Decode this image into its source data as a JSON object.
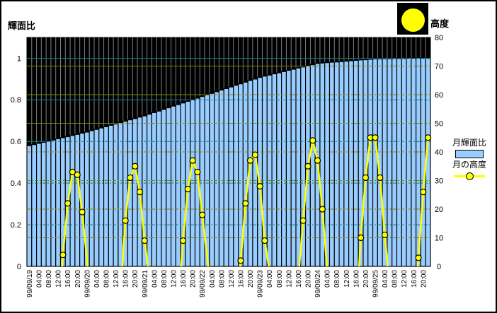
{
  "window": {
    "background": "#FFFFFF",
    "border_color": "#000000"
  },
  "titles": {
    "left_axis": "輝面比",
    "right_axis": "高度"
  },
  "moon_icon": {
    "name": "full-moon-icon",
    "shape": "circle",
    "fill": "#FFFF00",
    "box_background": "#000000"
  },
  "legend": {
    "position": "right",
    "items": [
      {
        "label": "月輝面比",
        "swatch": "bar",
        "color": "#99CCFF",
        "border": "#000000"
      },
      {
        "label": "月の高度",
        "swatch": "line-marker",
        "color": "#FFFF00",
        "marker_stroke": "#000000"
      }
    ]
  },
  "chart_data": {
    "type": "combo",
    "title": "",
    "plot": {
      "background": "#000000",
      "vertical_gridline_color": "#808080",
      "border": "#000000"
    },
    "x_axis": {
      "start": "99/09/19 00:00",
      "end": "99/09/25 22:00",
      "step_hours": 2,
      "label_every_hours": 4,
      "labels": [
        "99/09/19",
        "04:00",
        "08:00",
        "12:00",
        "16:00",
        "20:00",
        "99/09/20",
        "04:00",
        "08:00",
        "12:00",
        "16:00",
        "20:00",
        "99/09/21",
        "04:00",
        "08:00",
        "12:00",
        "16:00",
        "20:00",
        "99/09/22",
        "04:00",
        "08:00",
        "12:00",
        "16:00",
        "20:00",
        "99/09/23",
        "04:00",
        "08:00",
        "12:00",
        "16:00",
        "20:00",
        "99/09/24",
        "04:00",
        "08:00",
        "12:00",
        "16:00",
        "20:00",
        "99/09/25",
        "04:00",
        "08:00",
        "12:00",
        "16:00",
        "20:00"
      ]
    },
    "left_axis": {
      "title": "輝面比",
      "min": 0,
      "max": 1.1,
      "major": 0.2,
      "ticks": [
        "1",
        "0.8",
        "0.6",
        "0.4",
        "0.2",
        "0"
      ],
      "tick_values": [
        1,
        0.8,
        0.6,
        0.4,
        0.2,
        0
      ],
      "gridline_color": "#008080"
    },
    "right_axis": {
      "title": "高度",
      "min": 0,
      "max": 80,
      "major": 10,
      "ticks": [
        "80",
        "70",
        "60",
        "50",
        "40",
        "30",
        "20",
        "10",
        "0"
      ],
      "tick_values": [
        80,
        70,
        60,
        50,
        40,
        30,
        20,
        10,
        0
      ],
      "gridline_color": "#808000"
    },
    "series": [
      {
        "name": "月輝面比",
        "type": "bar",
        "axis": "left",
        "color": "#99CCFF",
        "border": "#000000",
        "values": [
          0.58,
          0.585,
          0.591,
          0.596,
          0.602,
          0.607,
          0.613,
          0.618,
          0.623,
          0.629,
          0.634,
          0.64,
          0.645,
          0.652,
          0.658,
          0.665,
          0.671,
          0.678,
          0.684,
          0.691,
          0.697,
          0.704,
          0.71,
          0.717,
          0.723,
          0.731,
          0.739,
          0.746,
          0.754,
          0.762,
          0.77,
          0.777,
          0.785,
          0.793,
          0.8,
          0.808,
          0.816,
          0.824,
          0.831,
          0.839,
          0.847,
          0.854,
          0.862,
          0.87,
          0.877,
          0.885,
          0.893,
          0.9,
          0.908,
          0.914,
          0.919,
          0.925,
          0.93,
          0.936,
          0.942,
          0.947,
          0.953,
          0.958,
          0.964,
          0.969,
          0.975,
          0.977,
          0.979,
          0.981,
          0.982,
          0.984,
          0.986,
          0.988,
          0.99,
          0.992,
          0.993,
          0.995,
          0.997,
          0.997,
          0.998,
          0.998,
          0.999,
          0.999,
          0.999,
          1.0,
          1.0,
          1.0,
          1.0,
          1.0
        ]
      },
      {
        "name": "月の高度",
        "type": "line",
        "axis": "right",
        "color": "#FFFF00",
        "marker": {
          "shape": "circle",
          "fill": "#FFFF00",
          "stroke": "#000000"
        },
        "point_format": "[hours_from_99/09/19_00:00, altitude_deg, has_marker]",
        "segments": [
          [
            [
              13.6,
              0,
              0
            ],
            [
              14,
              4,
              1
            ],
            [
              16,
              22,
              1
            ],
            [
              18,
              33,
              1
            ],
            [
              20,
              32,
              1
            ],
            [
              22,
              19,
              1
            ],
            [
              24.3,
              0,
              0
            ]
          ],
          [
            [
              38.7,
              0,
              0
            ],
            [
              40,
              16,
              1
            ],
            [
              42,
              31,
              1
            ],
            [
              44,
              35,
              1
            ],
            [
              46,
              26,
              1
            ],
            [
              48,
              9,
              1
            ],
            [
              49.4,
              0,
              0
            ]
          ],
          [
            [
              63.2,
              0,
              0
            ],
            [
              64,
              9,
              1
            ],
            [
              66,
              27,
              1
            ],
            [
              68,
              37,
              1
            ],
            [
              70,
              33,
              1
            ],
            [
              72,
              18,
              1
            ],
            [
              74.5,
              0,
              0
            ]
          ],
          [
            [
              87.8,
              0,
              0
            ],
            [
              88,
              2,
              1
            ],
            [
              90,
              22,
              1
            ],
            [
              92,
              37,
              1
            ],
            [
              94,
              39,
              1
            ],
            [
              96,
              28,
              1
            ],
            [
              98,
              9,
              1
            ],
            [
              99.7,
              0,
              0
            ]
          ],
          [
            [
              112.4,
              0,
              0
            ],
            [
              114,
              16,
              1
            ],
            [
              116,
              35,
              1
            ],
            [
              118,
              44,
              1
            ],
            [
              120,
              37,
              1
            ],
            [
              122,
              20,
              1
            ],
            [
              123.9,
              0,
              0
            ]
          ],
          [
            [
              137.3,
              0,
              0
            ],
            [
              138,
              10,
              1
            ],
            [
              140,
              31,
              1
            ],
            [
              142,
              45,
              1
            ],
            [
              144,
              45,
              1
            ],
            [
              146,
              31,
              1
            ],
            [
              148,
              11,
              1
            ],
            [
              149.2,
              0,
              0
            ]
          ],
          [
            [
              161.7,
              0,
              0
            ],
            [
              162,
              3,
              1
            ],
            [
              164,
              26,
              1
            ],
            [
              166,
              45,
              1
            ]
          ]
        ]
      }
    ]
  }
}
